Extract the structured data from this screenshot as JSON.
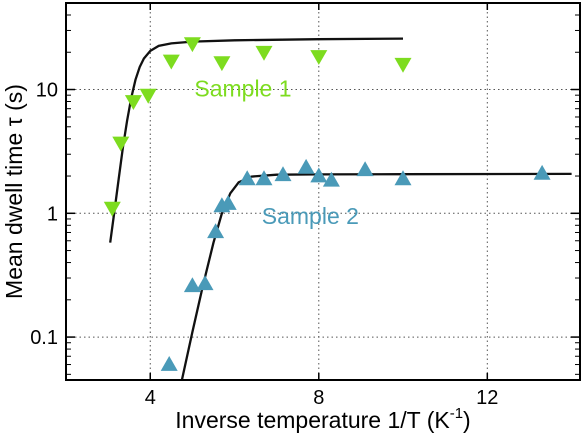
{
  "chart_data": {
    "type": "scatter",
    "xlabel": "Inverse temperature 1/T (K",
    "xlabel_sup": "-1",
    "xlabel_end": ")",
    "ylabel": "Mean dwell time τ (s)",
    "xlim": [
      2,
      14.2
    ],
    "ylim": [
      0.045,
      50
    ],
    "yscale": "log",
    "grid": true,
    "x_ticks": [
      {
        "value": 4,
        "label": "4"
      },
      {
        "value": 8,
        "label": "8"
      },
      {
        "value": 12,
        "label": "12"
      }
    ],
    "y_ticks": [
      {
        "value": 0.1,
        "label": "0.1"
      },
      {
        "value": 1,
        "label": "1"
      },
      {
        "value": 10,
        "label": "10"
      }
    ],
    "series": [
      {
        "name": "Sample 1",
        "marker": "triangle-down",
        "color": "#7ddc1f",
        "points": [
          [
            3.1,
            1.1
          ],
          [
            3.3,
            3.7
          ],
          [
            3.6,
            8.0
          ],
          [
            3.95,
            9.0
          ],
          [
            4.5,
            17.0
          ],
          [
            5.0,
            23.5
          ],
          [
            5.7,
            16.5
          ],
          [
            6.7,
            20.0
          ],
          [
            8.0,
            18.5
          ],
          [
            10.0,
            16.0
          ]
        ],
        "fit": [
          [
            3.05,
            0.58
          ],
          [
            3.15,
            1.05
          ],
          [
            3.25,
            1.9
          ],
          [
            3.35,
            3.4
          ],
          [
            3.45,
            5.6
          ],
          [
            3.55,
            8.6
          ],
          [
            3.65,
            12.0
          ],
          [
            3.75,
            15.2
          ],
          [
            3.85,
            17.8
          ],
          [
            4.0,
            20.5
          ],
          [
            4.2,
            22.5
          ],
          [
            4.5,
            23.6
          ],
          [
            5.0,
            24.4
          ],
          [
            6.0,
            25.0
          ],
          [
            8.0,
            25.5
          ],
          [
            10.0,
            25.8
          ]
        ]
      },
      {
        "name": "Sample 2",
        "marker": "triangle-up",
        "color": "#4a9ab8",
        "points": [
          [
            4.45,
            0.06
          ],
          [
            5.0,
            0.26
          ],
          [
            5.3,
            0.27
          ],
          [
            5.55,
            0.71
          ],
          [
            5.7,
            1.15
          ],
          [
            5.85,
            1.2
          ],
          [
            6.3,
            1.9
          ],
          [
            6.7,
            1.9
          ],
          [
            7.15,
            2.05
          ],
          [
            7.7,
            2.35
          ],
          [
            8.0,
            2.0
          ],
          [
            8.3,
            1.85
          ],
          [
            9.1,
            2.25
          ],
          [
            10.0,
            1.9
          ],
          [
            13.3,
            2.1
          ]
        ],
        "fit": [
          [
            4.75,
            0.045
          ],
          [
            5.0,
            0.11
          ],
          [
            5.25,
            0.26
          ],
          [
            5.5,
            0.58
          ],
          [
            5.7,
            1.0
          ],
          [
            5.9,
            1.45
          ],
          [
            6.1,
            1.78
          ],
          [
            6.4,
            1.98
          ],
          [
            7.0,
            2.05
          ],
          [
            8.0,
            2.06
          ],
          [
            10.0,
            2.07
          ],
          [
            14.0,
            2.08
          ]
        ]
      }
    ],
    "annotations": [
      {
        "text": "Sample 1",
        "series": 0,
        "x": 6.2,
        "y": 8.8,
        "color": "#7ddc1f"
      },
      {
        "text": "Sample 2",
        "series": 1,
        "x": 7.8,
        "y": 0.82,
        "color": "#4a9ab8"
      }
    ]
  }
}
